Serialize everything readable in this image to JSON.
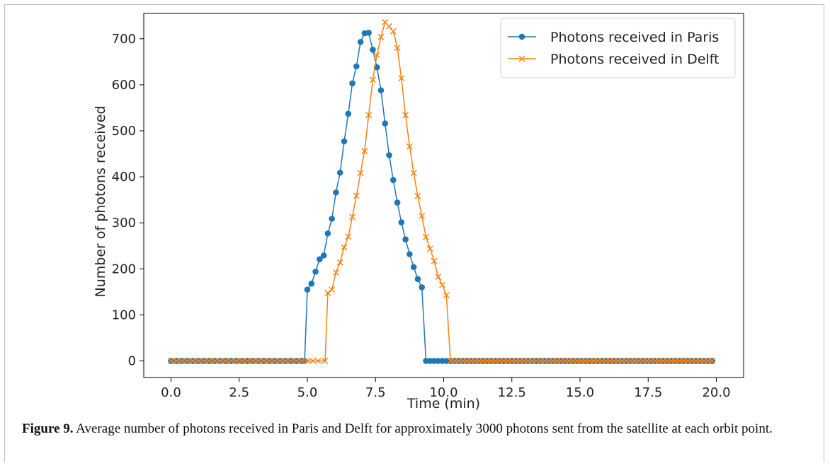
{
  "caption": {
    "label": "Figure 9.",
    "text": " Average number of photons received in Paris and Delft for approximately 3000 photons sent from the satellite at each orbit point."
  },
  "chart_data": {
    "type": "line",
    "xlabel": "Time (min)",
    "ylabel": "Number of photons received",
    "xlim": [
      -1.0,
      21.0
    ],
    "ylim": [
      -36,
      755
    ],
    "xticks": [
      "0.0",
      "2.5",
      "5.0",
      "7.5",
      "10.0",
      "12.5",
      "15.0",
      "17.5",
      "20.0"
    ],
    "yticks": [
      "0",
      "100",
      "200",
      "300",
      "400",
      "500",
      "600",
      "700"
    ],
    "grid": false,
    "legend_position": "top-right",
    "series": [
      {
        "name": "Photons received in Paris",
        "color": "#1f77b4",
        "marker": "circle",
        "x": [
          4.9,
          5.0,
          5.15,
          5.3,
          5.45,
          5.6,
          5.75,
          5.9,
          6.05,
          6.2,
          6.35,
          6.5,
          6.65,
          6.8,
          6.95,
          7.1,
          7.25,
          7.4,
          7.55,
          7.7,
          7.85,
          8.0,
          8.15,
          8.3,
          8.45,
          8.6,
          8.75,
          8.9,
          9.05,
          9.2,
          9.35,
          9.5,
          9.65,
          9.8
        ],
        "y": [
          0,
          155,
          168,
          194,
          221,
          229,
          277,
          309,
          366,
          409,
          477,
          537,
          603,
          640,
          693,
          712,
          713,
          676,
          638,
          588,
          516,
          447,
          393,
          344,
          301,
          264,
          232,
          204,
          178,
          160,
          0,
          0,
          0,
          0
        ]
      },
      {
        "name": "Photons received in Delft",
        "color": "#ff7f0e",
        "marker": "x",
        "x": [
          5.65,
          5.75,
          5.9,
          6.05,
          6.2,
          6.35,
          6.5,
          6.65,
          6.8,
          6.95,
          7.1,
          7.25,
          7.4,
          7.55,
          7.7,
          7.85,
          8.0,
          8.15,
          8.3,
          8.45,
          8.6,
          8.75,
          8.9,
          9.05,
          9.2,
          9.35,
          9.5,
          9.65,
          9.8,
          9.95,
          10.1,
          10.25,
          10.4,
          10.55,
          10.7,
          10.85
        ],
        "y": [
          0,
          148,
          155,
          192,
          214,
          247,
          270,
          313,
          359,
          408,
          456,
          534,
          611,
          665,
          704,
          736,
          727,
          716,
          680,
          614,
          534,
          466,
          408,
          358,
          315,
          269,
          244,
          217,
          183,
          165,
          143,
          0,
          0,
          0,
          0,
          0
        ]
      }
    ]
  }
}
